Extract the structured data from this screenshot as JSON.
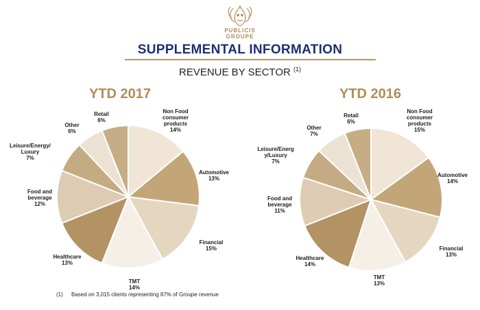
{
  "logo": {
    "line1": "PUBLICIS",
    "line2": "GROUPE",
    "icon": "lion-head-icon"
  },
  "header": {
    "title": "SUPPLEMENTAL INFORMATION",
    "subtitle": "REVENUE BY SECTOR",
    "subtitle_note": "(1)"
  },
  "colors": {
    "title_blue": "#1d2e73",
    "accent_gold": "#b08d58"
  },
  "chart_data": [
    {
      "type": "pie",
      "title": "YTD 2017",
      "categories": [
        "Non Food consumer products",
        "Automotive",
        "Financial",
        "TMT",
        "Healthcare",
        "Food and beverage",
        "Leisure/Energy/ Luxury",
        "Other",
        "Retail"
      ],
      "values": [
        14,
        13,
        15,
        14,
        13,
        12,
        7,
        6,
        6
      ],
      "value_labels": [
        "14%",
        "13%",
        "15%",
        "14%",
        "13%",
        "12%",
        "7%",
        "6%",
        "6%"
      ]
    },
    {
      "type": "pie",
      "title": "YTD 2016",
      "categories": [
        "Non Food consumer products",
        "Automotive",
        "Financial",
        "TMT",
        "Healthcare",
        "Food and beverage",
        "Leisure/Energ y/Luxury",
        "Other",
        "Retail"
      ],
      "values": [
        15,
        14,
        13,
        13,
        14,
        11,
        7,
        7,
        6
      ],
      "value_labels": [
        "15%",
        "14%",
        "13%",
        "13%",
        "14%",
        "11%",
        "7%",
        "7%",
        "6%"
      ]
    }
  ],
  "footnote": {
    "number": "(1)",
    "text": "Based on 3,015 clients representing 87% of Groupe revenue"
  }
}
